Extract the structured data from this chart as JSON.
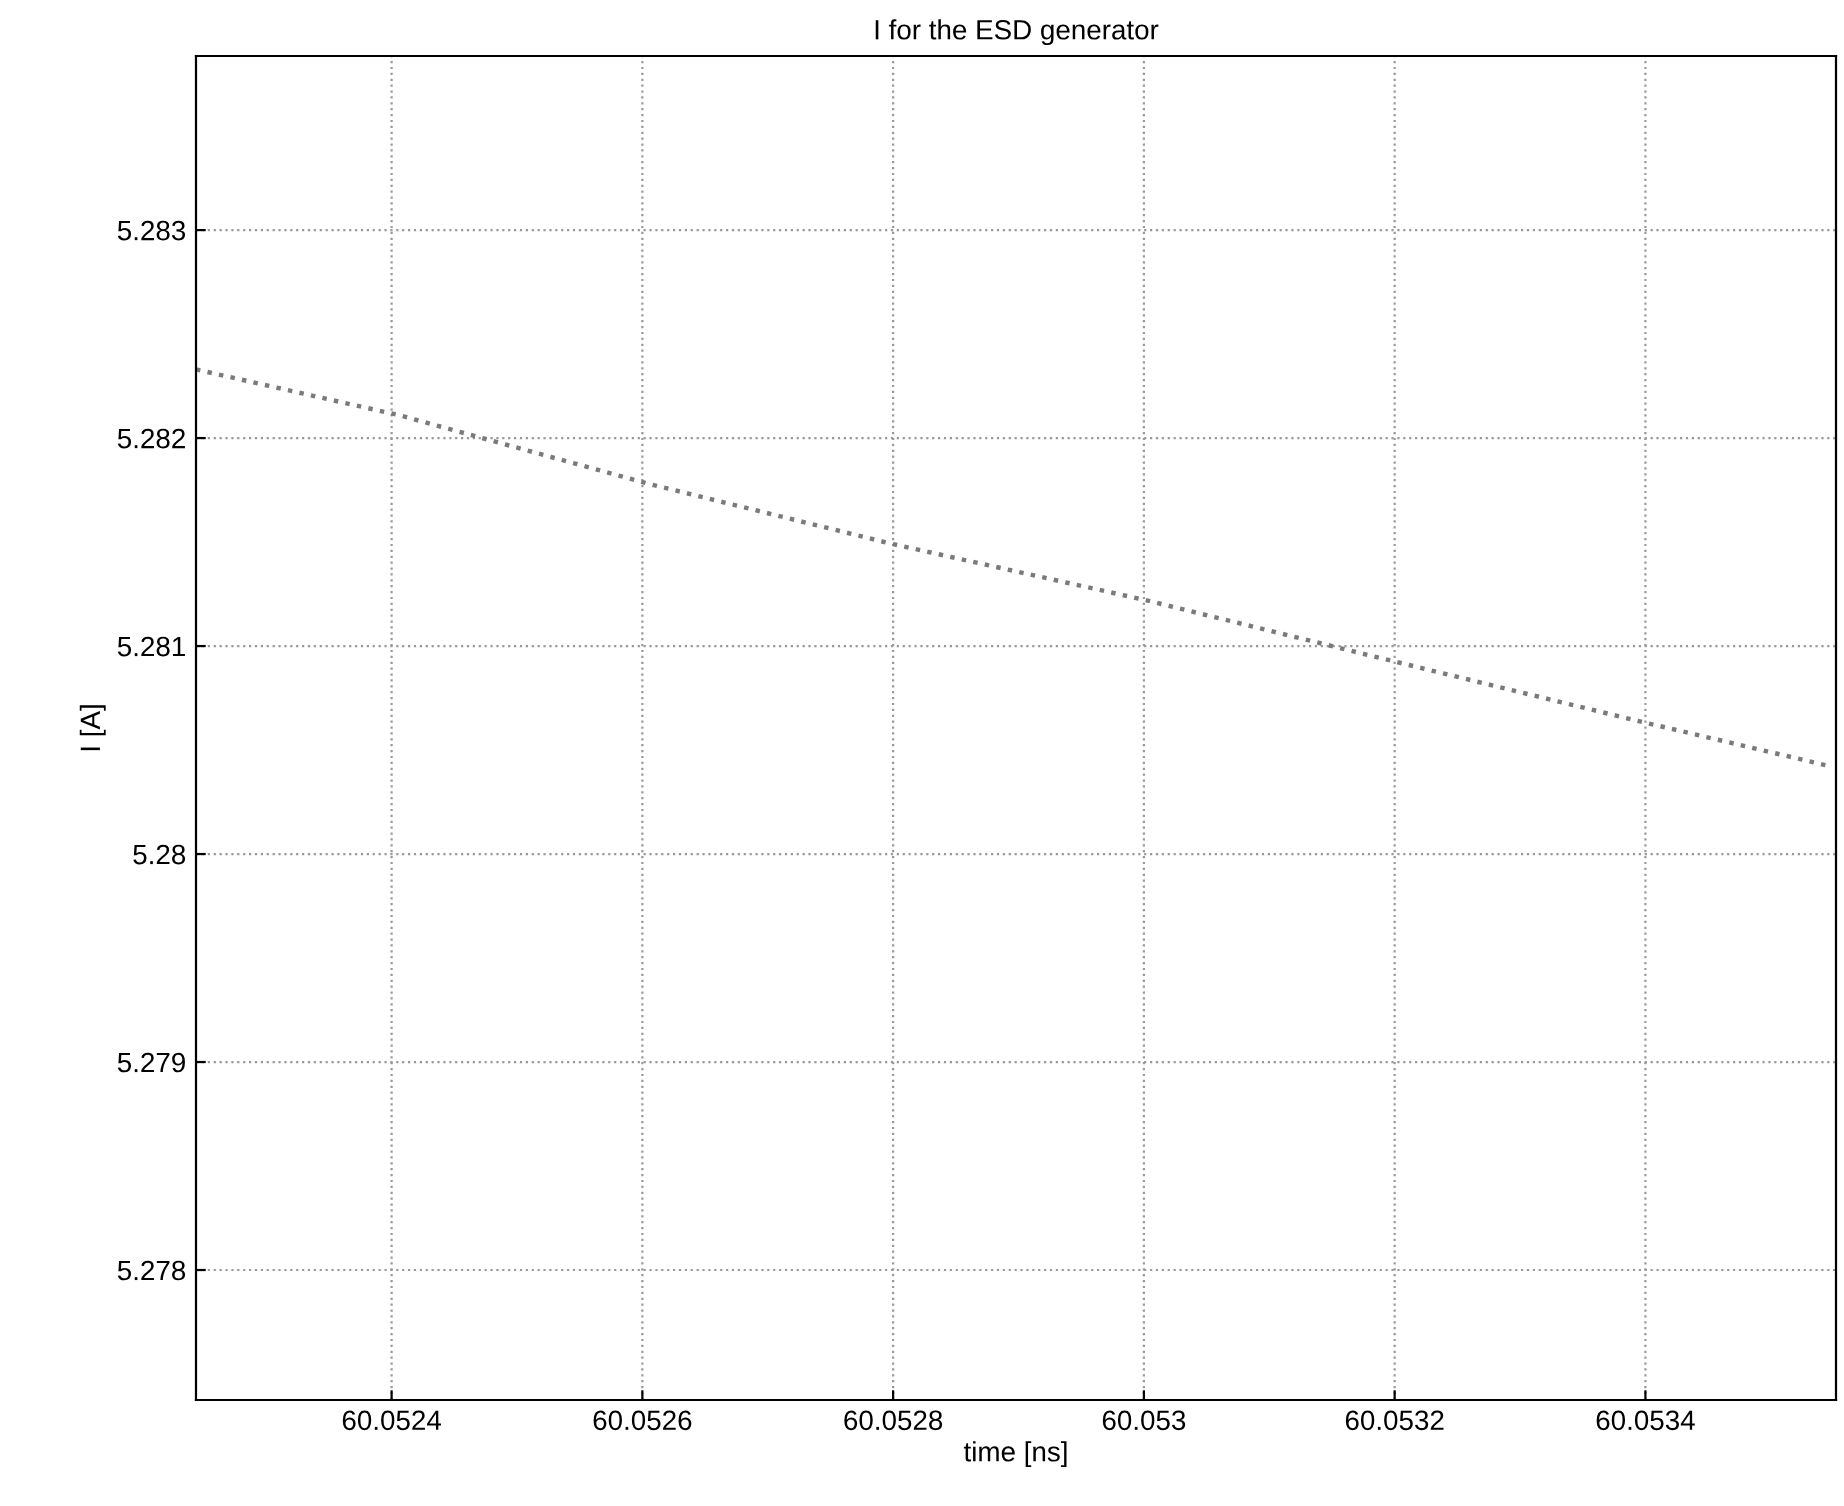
{
  "chart_data": {
    "type": "line",
    "title": "I for the ESD generator",
    "xlabel": "time [ns]",
    "ylabel": "I [A]",
    "x": [
      60.052244,
      60.052406,
      60.052605,
      60.0528,
      60.053002,
      60.053197,
      60.053394,
      60.053549
    ],
    "series": [
      {
        "color": "#7a7a7a",
        "values": [
          5.28233,
          5.28211,
          5.28178,
          5.28149,
          5.28122,
          5.28093,
          5.28064,
          5.28042
        ]
      }
    ],
    "xlim": [
      60.052244,
      60.053552
    ],
    "ylim": [
      5.277375,
      5.283837
    ],
    "xticks": [
      60.0524,
      60.0526,
      60.0528,
      60.053,
      60.0532,
      60.0534
    ],
    "yticks": [
      5.278,
      5.279,
      5.28,
      5.281,
      5.282,
      5.283
    ],
    "grid": true,
    "line_style": "dotted",
    "legend": false
  }
}
